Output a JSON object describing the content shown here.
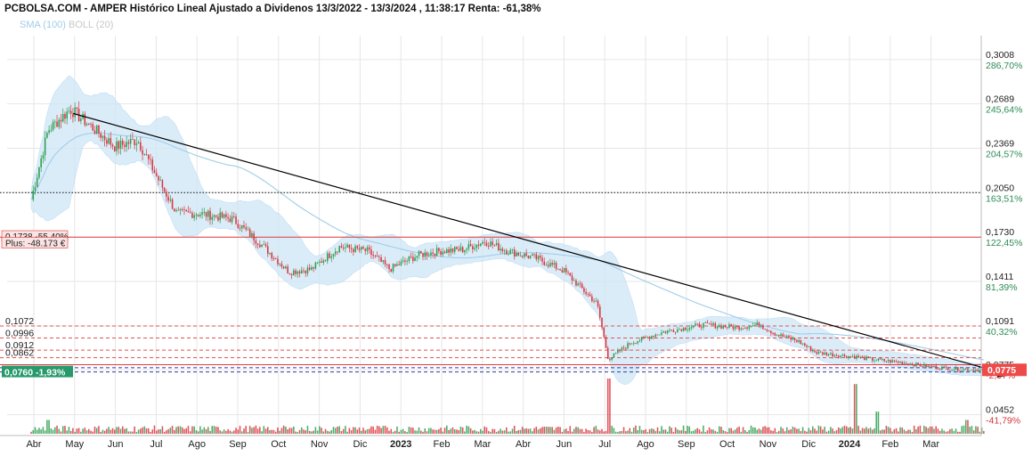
{
  "title": "PCBOLSA.COM - AMPER Histórico Lineal Ajustado a Dividenos 13/3/2022 - 13/3/2024 , 11:38:17 Renta: -61,38%",
  "legend": {
    "sma": "SMA (100)",
    "boll": "BOLL (20)"
  },
  "colors": {
    "up": "#2e9e4f",
    "down": "#d9363e",
    "band": "#cfe6f7",
    "sma": "#9fcde9",
    "trend": "#000000",
    "ref_line": "#e23a3a",
    "current_box": "#27996b",
    "price_box": "#ef4a4a",
    "grid": "#e6e6e6"
  },
  "chart_data": {
    "type": "candlestick",
    "x_axis_labels": [
      "Abr",
      "May",
      "Jun",
      "Jul",
      "Ago",
      "Sep",
      "Oct",
      "Nov",
      "Dic",
      "2023",
      "Feb",
      "Mar",
      "Abr",
      "Jun",
      "Jul",
      "Ago",
      "Sep",
      "Oct",
      "Nov",
      "Dic",
      "2024",
      "Feb",
      "Mar"
    ],
    "x_axis_bold": [
      "2023",
      "2024"
    ],
    "y_axis_ticks": [
      {
        "price": "0,3008",
        "pct": "286,70%"
      },
      {
        "price": "0,2689",
        "pct": "245,64%"
      },
      {
        "price": "0,2369",
        "pct": "204,57%"
      },
      {
        "price": "0,2050",
        "pct": "163,51%"
      },
      {
        "price": "0,1730",
        "pct": "122,45%"
      },
      {
        "price": "0,1411",
        "pct": "81,39%"
      },
      {
        "price": "0,1091",
        "pct": "40,32%"
      },
      {
        "price": "0,0775",
        "pct": "-2,37%"
      },
      {
        "price": "0,0452",
        "pct": "-41,79%"
      }
    ],
    "ylim": [
      0.036,
      0.318
    ],
    "close_path": [
      {
        "m": 0,
        "v": 0.2
      },
      {
        "m": 0.3,
        "v": 0.25
      },
      {
        "m": 0.7,
        "v": 0.265
      },
      {
        "m": 1.0,
        "v": 0.255
      },
      {
        "m": 1.5,
        "v": 0.238
      },
      {
        "m": 1.9,
        "v": 0.243
      },
      {
        "m": 2.3,
        "v": 0.212
      },
      {
        "m": 2.6,
        "v": 0.19
      },
      {
        "m": 3.0,
        "v": 0.19
      },
      {
        "m": 3.6,
        "v": 0.186
      },
      {
        "m": 4.1,
        "v": 0.168
      },
      {
        "m": 4.6,
        "v": 0.148
      },
      {
        "m": 5.0,
        "v": 0.15
      },
      {
        "m": 5.5,
        "v": 0.166
      },
      {
        "m": 6.0,
        "v": 0.163
      },
      {
        "m": 6.4,
        "v": 0.15
      },
      {
        "m": 6.9,
        "v": 0.16
      },
      {
        "m": 7.3,
        "v": 0.163
      },
      {
        "m": 7.7,
        "v": 0.164
      },
      {
        "m": 8.1,
        "v": 0.17
      },
      {
        "m": 8.5,
        "v": 0.163
      },
      {
        "m": 9.0,
        "v": 0.158
      },
      {
        "m": 9.5,
        "v": 0.149
      },
      {
        "m": 10.1,
        "v": 0.125
      },
      {
        "m": 10.3,
        "v": 0.085
      },
      {
        "m": 10.7,
        "v": 0.097
      },
      {
        "m": 11.3,
        "v": 0.105
      },
      {
        "m": 12.0,
        "v": 0.11
      },
      {
        "m": 12.6,
        "v": 0.108
      },
      {
        "m": 13.0,
        "v": 0.11
      },
      {
        "m": 13.3,
        "v": 0.103
      },
      {
        "m": 13.7,
        "v": 0.098
      },
      {
        "m": 14.0,
        "v": 0.09
      },
      {
        "m": 14.4,
        "v": 0.088
      },
      {
        "m": 14.7,
        "v": 0.087
      },
      {
        "m": 15.0,
        "v": 0.085
      },
      {
        "m": 15.5,
        "v": 0.083
      },
      {
        "m": 16.0,
        "v": 0.08
      },
      {
        "m": 16.5,
        "v": 0.078
      },
      {
        "m": 17.0,
        "v": 0.0775
      }
    ],
    "volume_spikes": [
      {
        "m": 10.3,
        "h": 1.0
      },
      {
        "m": 14.7,
        "h": 0.9
      },
      {
        "m": 15.1,
        "h": 0.4
      },
      {
        "m": 0.3,
        "h": 0.25
      },
      {
        "m": 16.7,
        "h": 0.25
      }
    ],
    "trendline": {
      "from": {
        "m": 0.75,
        "v": 0.262
      },
      "to": {
        "m": 17.0,
        "v": 0.077
      }
    },
    "horizontal_lines": [
      {
        "v": 0.205,
        "style": "dotted",
        "color": "#111111"
      },
      {
        "v": 0.173,
        "style": "solid",
        "color": "#e23a3a"
      },
      {
        "v": 0.1091,
        "style": "dashed",
        "color": "#e05252"
      },
      {
        "v": 0.1004,
        "style": "dashed",
        "color": "#e05252"
      },
      {
        "v": 0.0917,
        "style": "dashed",
        "color": "#e05252"
      },
      {
        "v": 0.0862,
        "style": "dashed",
        "color": "#e05252"
      },
      {
        "v": 0.0812,
        "style": "solid",
        "color": "#e23a3a"
      },
      {
        "v": 0.076,
        "style": "dashed",
        "color": "#2b3fa0"
      },
      {
        "v": 0.079,
        "style": "dashed",
        "color": "#2b3fa0"
      }
    ],
    "left_labels": [
      {
        "text": "0,1738 -55,40%",
        "v": 0.1738,
        "style": "box-red"
      },
      {
        "text": "Plus: -48.173 €",
        "v": 0.169,
        "style": "box-red"
      },
      {
        "text": "0,1072",
        "v": 0.1091,
        "style": "plain"
      },
      {
        "text": "0,0996",
        "v": 0.1004,
        "style": "plain"
      },
      {
        "text": "0,0912",
        "v": 0.0917,
        "style": "plain"
      },
      {
        "text": "0,0862",
        "v": 0.0862,
        "style": "plain"
      },
      {
        "text": "0,0760 -1,93%",
        "v": 0.076,
        "style": "box-green"
      }
    ],
    "current_price_label": {
      "text": "0,0775",
      "v": 0.0775
    }
  }
}
